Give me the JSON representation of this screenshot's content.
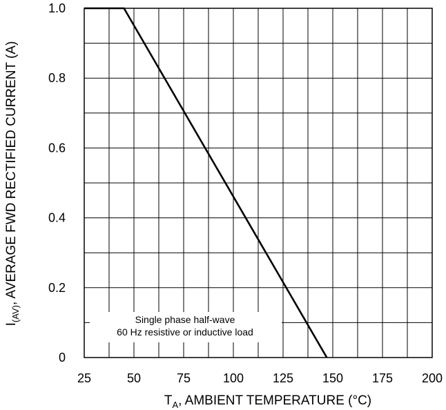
{
  "chart_data": {
    "type": "line",
    "title": "",
    "xlabel": {
      "main": "T",
      "sub": "A",
      "rest": ", AMBIENT TEMPERATURE (°C)"
    },
    "ylabel": {
      "main": "I",
      "sub": "(AV)",
      "rest": ", AVERAGE FWD RECTIFIED CURRENT (A)"
    },
    "xlim": [
      25,
      200
    ],
    "ylim": [
      0,
      1.0
    ],
    "x_ticks": [
      "25",
      "50",
      "75",
      "100",
      "125",
      "150",
      "175",
      "200"
    ],
    "y_ticks": [
      "0",
      "0.2",
      "0.4",
      "0.6",
      "0.8",
      "1.0"
    ],
    "grid": true,
    "series": [
      {
        "x": [
          25,
          45,
          147
        ],
        "y": [
          1.0,
          1.0,
          0.0
        ]
      }
    ],
    "annotations": [
      "Single phase half-wave",
      "60 Hz resistive or inductive load"
    ]
  }
}
